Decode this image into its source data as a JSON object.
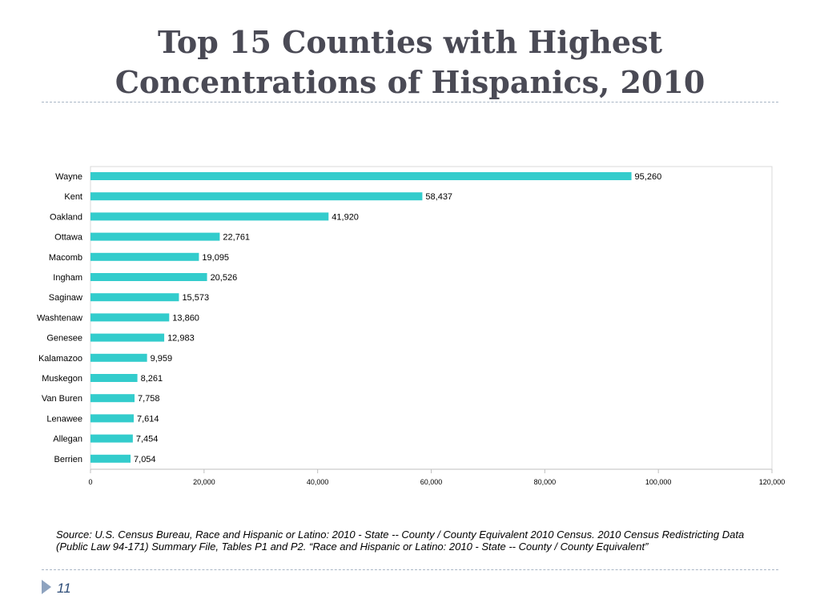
{
  "slide": {
    "title_line1": "Top 15 Counties with Highest",
    "title_line2": "Concentrations of Hispanics, 2010",
    "source": "Source: U.S. Census Bureau, Race and Hispanic or Latino: 2010 - State -- County / County Equivalent 2010 Census. 2010 Census Redistricting Data (Public Law 94-171) Summary File, Tables P1 and P2. “Race and Hispanic or Latino: 2010 - State -- County / County Equivalent”",
    "page_number": "11"
  },
  "chart_data": {
    "type": "bar",
    "orientation": "horizontal",
    "categories": [
      "Wayne",
      "Kent",
      "Oakland",
      "Ottawa",
      "Macomb",
      "Ingham",
      "Saginaw",
      "Washtenaw",
      "Genesee",
      "Kalamazoo",
      "Muskegon",
      "Van Buren",
      "Lenawee",
      "Allegan",
      "Berrien"
    ],
    "values": [
      95260,
      58437,
      41920,
      22761,
      19095,
      20526,
      15573,
      13860,
      12983,
      9959,
      8261,
      7758,
      7614,
      7454,
      7054
    ],
    "value_labels": [
      "95,260",
      "58,437",
      "41,920",
      "22,761",
      "19,095",
      "20,526",
      "15,573",
      "13,860",
      "12,983",
      "9,959",
      "8,261",
      "7,758",
      "7,614",
      "7,454",
      "7,054"
    ],
    "xlim": [
      0,
      120000
    ],
    "x_ticks": [
      0,
      20000,
      40000,
      60000,
      80000,
      100000,
      120000
    ],
    "x_tick_labels": [
      "0",
      "20,000",
      "40,000",
      "60,000",
      "80,000",
      "100,000",
      "120,000"
    ],
    "bar_color": "#33cccc",
    "grid": false,
    "legend": "none"
  }
}
